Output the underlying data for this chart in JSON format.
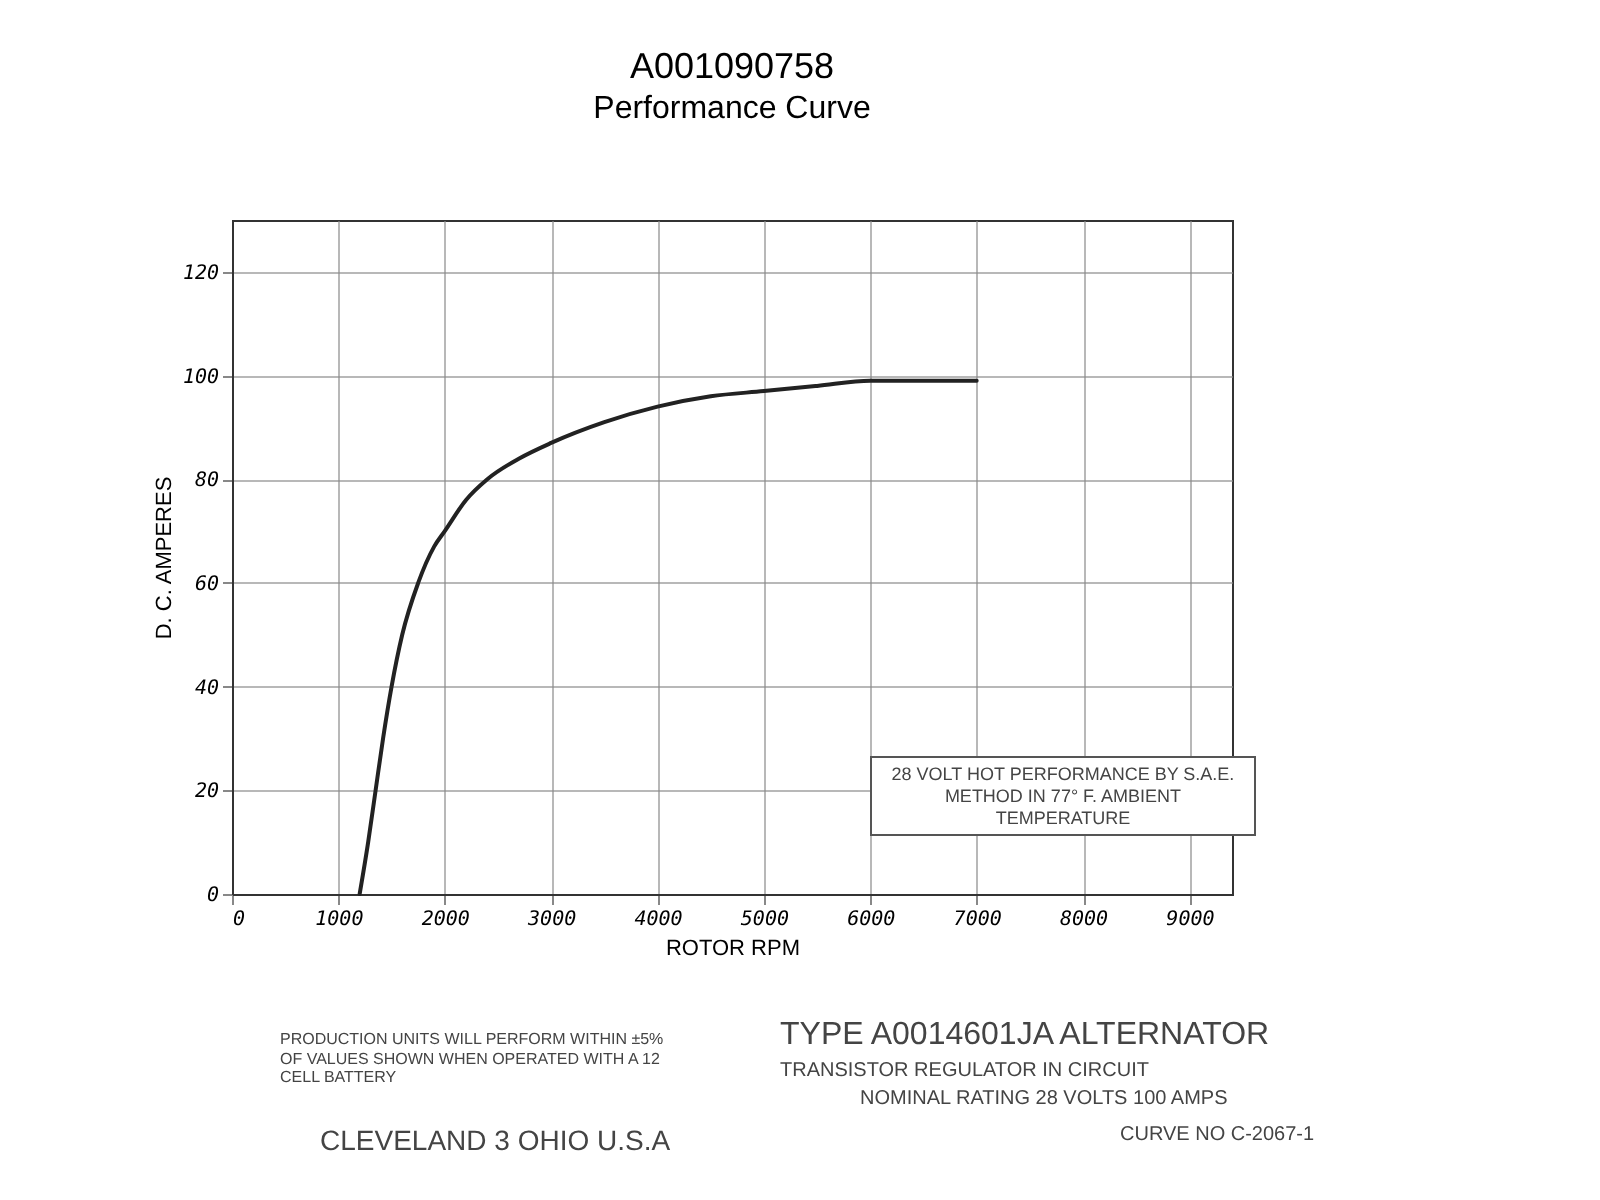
{
  "chart_data": {
    "type": "line",
    "title": "A001090758",
    "subtitle": "Performance Curve",
    "xlabel": "ROTOR RPM",
    "ylabel": "D. C. AMPERES",
    "x": [
      1200,
      1280,
      1350,
      1420,
      1500,
      1600,
      1750,
      1900,
      2000,
      2200,
      2400,
      2700,
      3000,
      3500,
      4000,
      4500,
      5000,
      5500,
      6000,
      6500,
      7000
    ],
    "series": [
      {
        "color": "#222222",
        "values": [
          0,
          10,
          20,
          30,
          40,
          50,
          60,
          67,
          70,
          76,
          80,
          84,
          87,
          91,
          94,
          96,
          97,
          98,
          99,
          99,
          99
        ]
      }
    ],
    "xlim": [
      0,
      9400
    ],
    "xticks": [
      0,
      1000,
      2000,
      3000,
      4000,
      5000,
      6000,
      7000,
      8000,
      9000
    ],
    "ylim": [
      0,
      130
    ],
    "yticks": [
      0,
      20,
      40,
      60,
      80,
      100,
      120
    ],
    "grid": true,
    "marker": "none",
    "line_style": "solid",
    "annotations": [
      "28 VOLT HOT PERFORMANCE BY S.A.E. METHOD IN 77° F. AMBIENT TEMPERATURE",
      "PRODUCTION UNITS WILL PERFORM WITHIN ±5% OF VALUES SHOWN WHEN OPERATED WITH A 12 CELL BATTERY",
      "TYPE A0014601JA ALTERNATOR",
      "TRANSISTOR REGULATOR IN CIRCUIT",
      "NOMINAL RATING 28 VOLTS 100 AMPS",
      "CLEVELAND 3 OHIO U.S.A",
      "CURVE NO C-2067-1"
    ]
  }
}
